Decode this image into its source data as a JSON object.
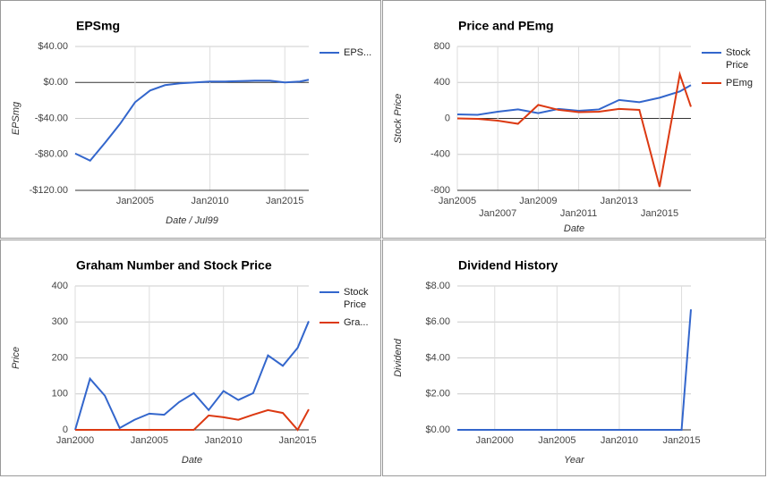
{
  "chart_data": [
    {
      "type": "line",
      "title": "EPSmg",
      "xlabel": "Date / Jul99",
      "ylabel": "EPSmg",
      "x": [
        2001,
        2002,
        2003,
        2004,
        2005,
        2006,
        2007,
        2008,
        2009,
        2010,
        2011,
        2012,
        2013,
        2014,
        2015,
        2016,
        2016.6
      ],
      "series": [
        {
          "name": "EPS...",
          "color": "#3366cc",
          "values": [
            -79,
            -87,
            -67,
            -46,
            -22,
            -9,
            -3,
            -1,
            0,
            1,
            1,
            1.5,
            2,
            2,
            0,
            1,
            3
          ]
        }
      ],
      "xlim": [
        2001,
        2016.6
      ],
      "xticks": [
        {
          "value": 2005,
          "label": "Jan2005"
        },
        {
          "value": 2010,
          "label": "Jan2010"
        },
        {
          "value": 2015,
          "label": "Jan2015"
        }
      ],
      "ylim": [
        -120,
        40
      ],
      "yticks": [
        {
          "value": 40,
          "label": "$40.00"
        },
        {
          "value": 0,
          "label": "$0.00"
        },
        {
          "value": -40,
          "label": "-$40.00"
        },
        {
          "value": -80,
          "label": "-$80.00"
        },
        {
          "value": -120,
          "label": "-$120.00"
        }
      ],
      "grid": true,
      "legend": "right"
    },
    {
      "type": "line",
      "title": "Price and PEmg",
      "xlabel": "Date",
      "ylabel": "Stock Price",
      "x": [
        2005,
        2006,
        2007,
        2008,
        2009,
        2010,
        2011,
        2012,
        2013,
        2014,
        2015,
        2016,
        2016.55
      ],
      "series": [
        {
          "name": "Stock Price",
          "color": "#3366cc",
          "values": [
            45,
            40,
            75,
            100,
            58,
            105,
            85,
            100,
            205,
            180,
            230,
            300,
            370
          ]
        },
        {
          "name": "PEmg",
          "color": "#dc3912",
          "values": [
            0,
            -5,
            -25,
            -60,
            150,
            95,
            70,
            75,
            105,
            95,
            -760,
            490,
            130
          ]
        }
      ],
      "xlim": [
        2005,
        2016.55
      ],
      "xticks": [
        {
          "value": 2005,
          "label": "Jan2005"
        },
        {
          "value": 2007,
          "label": "Jan2007"
        },
        {
          "value": 2009,
          "label": "Jan2009"
        },
        {
          "value": 2011,
          "label": "Jan2011"
        },
        {
          "value": 2013,
          "label": "Jan2013"
        },
        {
          "value": 2015,
          "label": "Jan2015"
        }
      ],
      "ylim": [
        -800,
        800
      ],
      "yticks": [
        800,
        400,
        0,
        -400,
        -800
      ],
      "grid": true,
      "legend": "right"
    },
    {
      "type": "line",
      "title": "Graham Number and Stock Price",
      "xlabel": "Date",
      "ylabel": "Price",
      "x": [
        2000,
        2001,
        2002,
        2003,
        2004,
        2005,
        2006,
        2007,
        2008,
        2009,
        2010,
        2011,
        2012,
        2013,
        2014,
        2015,
        2015.75
      ],
      "series": [
        {
          "name": "Stock Price",
          "color": "#3366cc",
          "values": [
            0,
            142,
            95,
            5,
            28,
            45,
            42,
            77,
            102,
            55,
            108,
            83,
            102,
            207,
            178,
            228,
            302
          ]
        },
        {
          "name": "Gra...",
          "color": "#dc3912",
          "values": [
            0,
            0,
            0,
            0,
            0,
            0,
            0,
            0,
            0,
            40,
            35,
            28,
            42,
            55,
            47,
            0,
            57
          ]
        }
      ],
      "xlim": [
        2000,
        2015.75
      ],
      "xticks": [
        {
          "value": 2000,
          "label": "Jan2000"
        },
        {
          "value": 2005,
          "label": "Jan2005"
        },
        {
          "value": 2010,
          "label": "Jan2010"
        },
        {
          "value": 2015,
          "label": "Jan2015"
        }
      ],
      "ylim": [
        0,
        400
      ],
      "yticks": [
        400,
        300,
        200,
        100,
        0
      ],
      "grid": true,
      "legend": "right"
    },
    {
      "type": "line",
      "title": "Dividend History",
      "xlabel": "Year",
      "ylabel": "Dividend",
      "x": [
        1997,
        1998,
        1999,
        2000,
        2001,
        2002,
        2003,
        2004,
        2005,
        2006,
        2007,
        2008,
        2009,
        2010,
        2011,
        2012,
        2013,
        2014,
        2015,
        2015.75
      ],
      "values": [
        0,
        0,
        0,
        0,
        0,
        0,
        0,
        0,
        0,
        0,
        0,
        0,
        0,
        0,
        0,
        0,
        0,
        0,
        0,
        6.7
      ],
      "color": "#3366cc",
      "xlim": [
        1997,
        2015.75
      ],
      "xticks": [
        {
          "value": 2000,
          "label": "Jan2000"
        },
        {
          "value": 2005,
          "label": "Jan2005"
        },
        {
          "value": 2010,
          "label": "Jan2010"
        },
        {
          "value": 2015,
          "label": "Jan2015"
        }
      ],
      "ylim": [
        0,
        8
      ],
      "yticks": [
        {
          "value": 8,
          "label": "$8.00"
        },
        {
          "value": 6,
          "label": "$6.00"
        },
        {
          "value": 4,
          "label": "$4.00"
        },
        {
          "value": 2,
          "label": "$2.00"
        },
        {
          "value": 0,
          "label": "$0.00"
        }
      ],
      "grid": true
    }
  ]
}
